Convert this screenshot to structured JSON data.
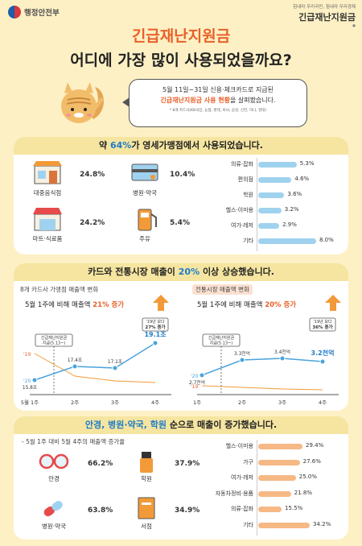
{
  "header": {
    "ministry": "행정안전부",
    "slogan": "힘내라 우리국민, 힘내라 우리경제",
    "brand": "긴급재난지원금"
  },
  "title": {
    "line1": "긴급재난지원금",
    "line2": "어디에 가장 많이 사용되었을까요?"
  },
  "speech": {
    "line1": "5월 11일~31일 신용·체크카드로 지급된",
    "line2_highlight": "긴급재난지원금 사용 현황",
    "line2_rest": "을 살펴봤습니다.",
    "note": "* 8개 카드사(KB국민, 농협, 롯데, 비씨, 삼성, 신한, 하나, 현대)"
  },
  "section1": {
    "banner_pre": "약 ",
    "banner_em": "64%",
    "banner_post": "가 영세가맹점에서 사용되었습니다.",
    "stats": [
      {
        "label": "대중음식점",
        "value": "24.8%",
        "icon": "restaurant-icon"
      },
      {
        "label": "병원·약국",
        "value": "10.4%",
        "icon": "hospital-icon"
      },
      {
        "label": "마트·식료품",
        "value": "24.2%",
        "icon": "mart-icon"
      },
      {
        "label": "주유",
        "value": "5.4%",
        "icon": "gas-icon"
      }
    ],
    "bars": [
      {
        "label": "의류·잡화",
        "value": 5.3,
        "text": "5.3%"
      },
      {
        "label": "편의점",
        "value": 4.6,
        "text": "4.6%"
      },
      {
        "label": "학원",
        "value": 3.6,
        "text": "3.6%"
      },
      {
        "label": "헬스·이미용",
        "value": 3.2,
        "text": "3.2%"
      },
      {
        "label": "여가·레저",
        "value": 2.9,
        "text": "2.9%"
      },
      {
        "label": "기타",
        "value": 8.0,
        "text": "8.0%"
      }
    ],
    "bar_color": "#9fd2ee"
  },
  "section2": {
    "banner_pre": "카드와 전통시장 매출이 ",
    "banner_em": "20%",
    "banner_post": " 이상 상승했습니다.",
    "left": {
      "title": "8개 카드사 가맹점 매출액 변화",
      "sub_pre": "5월 1주에 비해 매출액 ",
      "sub_em": "21% 증가",
      "callout1": [
        "긴급재난지원금",
        "지급(5.13~)"
      ],
      "callout2": [
        "'19년 보다",
        "27% 증가"
      ],
      "points": [
        "15.8조",
        "17.4조",
        "17.1조",
        "19.1조"
      ],
      "year_2020": "'20",
      "year_2019": "'19"
    },
    "right": {
      "title": "전통시장 매출액 변화",
      "sub_pre": "5월 1주에 비해 매출액 ",
      "sub_em": "20% 증가",
      "callout1": [
        "긴급재난지원금",
        "지급(5.13~)"
      ],
      "callout2": [
        "'19년 보다",
        "36% 증가"
      ],
      "points": [
        "2.7천억",
        "3.3천억",
        "3.4천억",
        "3.2천억"
      ],
      "year_2020": "'20",
      "year_2019": "'19"
    },
    "x_labels": [
      "5월 1주",
      "2주",
      "3주",
      "4주"
    ],
    "x_labels_right": [
      "1주",
      "2주",
      "3주",
      "4주"
    ]
  },
  "section3": {
    "banner_em": "안경, 병원·약국, 학원",
    "banner_post": " 순으로 매출이 증가했습니다.",
    "subtitle": "- 5월 1주 대비 5월 4주의 매출액 증가율",
    "stats": [
      {
        "label": "안경",
        "value": "66.2%",
        "icon": "glasses-icon"
      },
      {
        "label": "학원",
        "value": "37.9%",
        "icon": "academy-icon"
      },
      {
        "label": "병원·약국",
        "value": "63.8%",
        "icon": "pill-icon"
      },
      {
        "label": "서점",
        "value": "34.9%",
        "icon": "book-icon"
      }
    ],
    "bars": [
      {
        "label": "헬스·이미용",
        "value": 29.4,
        "text": "29.4%"
      },
      {
        "label": "가구",
        "value": 27.6,
        "text": "27.6%"
      },
      {
        "label": "여가·레저",
        "value": 25.0,
        "text": "25.0%"
      },
      {
        "label": "자동차정비·용품",
        "value": 21.8,
        "text": "21.8%"
      },
      {
        "label": "의류·잡화",
        "value": 15.5,
        "text": "15.5%"
      },
      {
        "label": "기타",
        "value": 34.2,
        "text": "34.2%"
      }
    ],
    "bar_color": "#f6b884"
  },
  "colors": {
    "accent_orange": "#e8612a",
    "accent_blue": "#1e7cc8",
    "bg": "#fdf0c4"
  }
}
